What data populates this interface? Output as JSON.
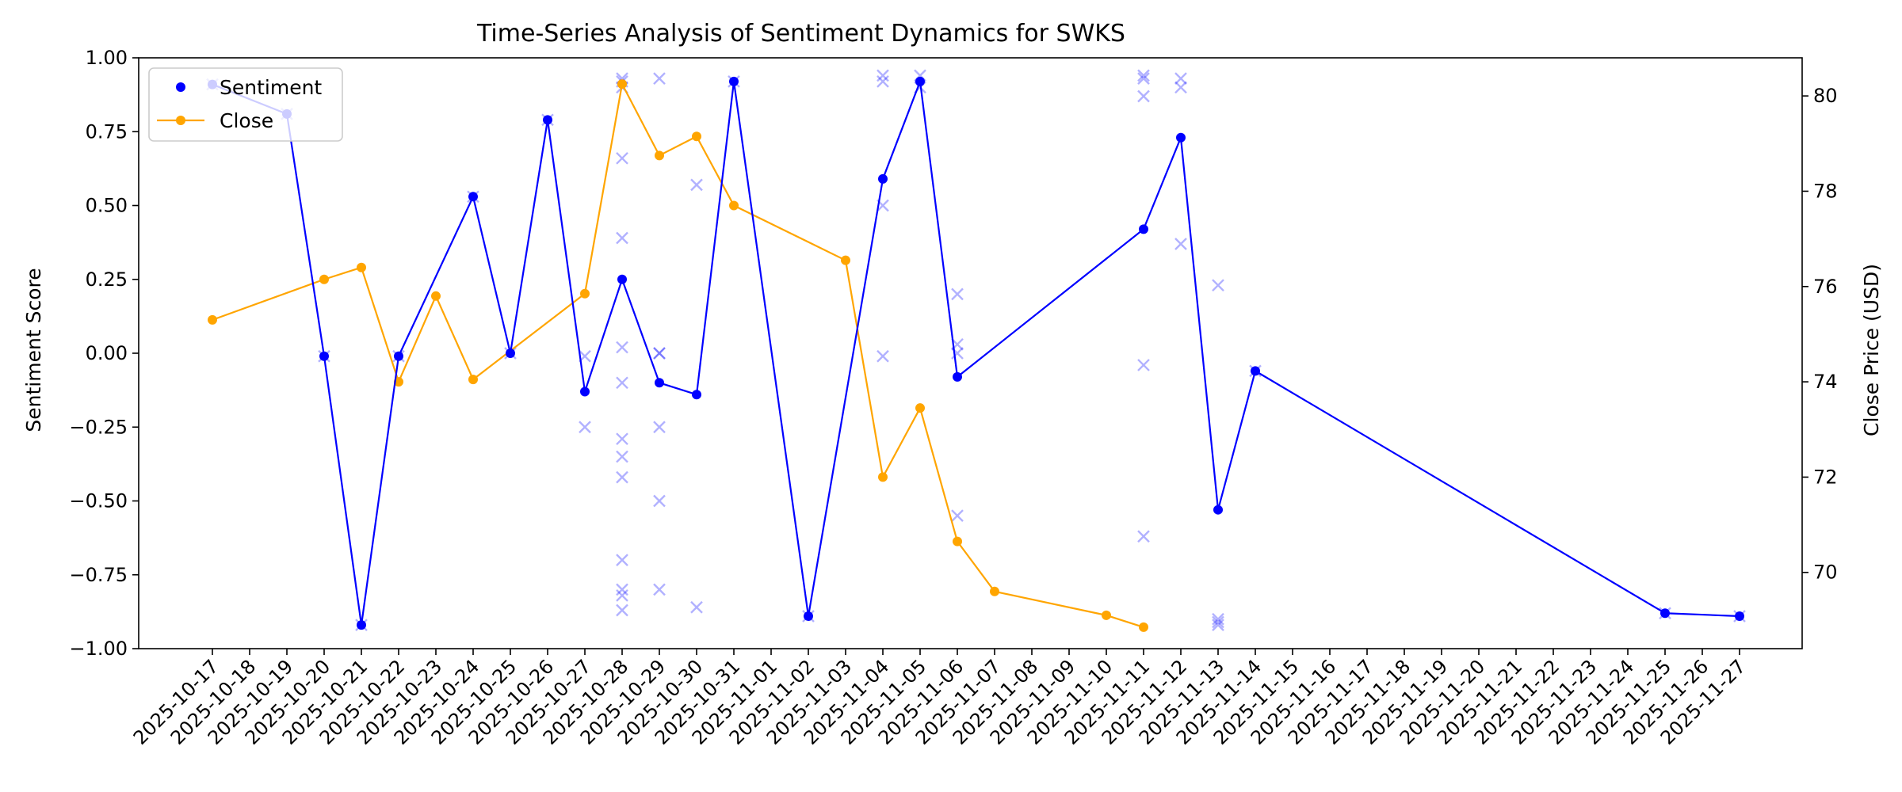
{
  "chart_data": {
    "type": "line",
    "title": "Time-Series Analysis of Sentiment Dynamics for SWKS",
    "xlabel": "",
    "ylabel": "Sentiment Score",
    "y2label": "Close Price (USD)",
    "ylim": [
      -1.0,
      1.0
    ],
    "y2lim": [
      68.4,
      80.8
    ],
    "yticks": [
      "1.00",
      "0.75",
      "0.50",
      "0.25",
      "0.00",
      "−0.25",
      "−0.50",
      "−0.75",
      "−1.00"
    ],
    "yticks_values": [
      1.0,
      0.75,
      0.5,
      0.25,
      0.0,
      -0.25,
      -0.5,
      -0.75,
      -1.0
    ],
    "y2ticks": [
      "80",
      "78",
      "76",
      "74",
      "72",
      "70"
    ],
    "y2ticks_values": [
      80,
      78,
      76,
      74,
      72,
      70
    ],
    "x_dates": [
      "2025-10-17",
      "2025-10-18",
      "2025-10-19",
      "2025-10-20",
      "2025-10-21",
      "2025-10-22",
      "2025-10-23",
      "2025-10-24",
      "2025-10-25",
      "2025-10-26",
      "2025-10-27",
      "2025-10-28",
      "2025-10-29",
      "2025-10-30",
      "2025-10-31",
      "2025-11-01",
      "2025-11-02",
      "2025-11-03",
      "2025-11-04",
      "2025-11-05",
      "2025-11-06",
      "2025-11-07",
      "2025-11-08",
      "2025-11-09",
      "2025-11-10",
      "2025-11-11",
      "2025-11-12",
      "2025-11-13",
      "2025-11-14",
      "2025-11-15",
      "2025-11-16",
      "2025-11-17",
      "2025-11-18",
      "2025-11-19",
      "2025-11-20",
      "2025-11-21",
      "2025-11-22",
      "2025-11-23",
      "2025-11-24",
      "2025-11-25",
      "2025-11-26",
      "2025-11-27"
    ],
    "grid": false,
    "legend_position": "top-left",
    "series": [
      {
        "name": "Sentiment",
        "axis": "left",
        "color": "#0000ff",
        "style": "line-with-dots",
        "points": [
          {
            "x": "2025-10-17",
            "y": 0.91
          },
          {
            "x": "2025-10-19",
            "y": 0.81
          },
          {
            "x": "2025-10-20",
            "y": -0.01
          },
          {
            "x": "2025-10-21",
            "y": -0.92
          },
          {
            "x": "2025-10-22",
            "y": -0.01
          },
          {
            "x": "2025-10-24",
            "y": 0.53
          },
          {
            "x": "2025-10-25",
            "y": 0.0
          },
          {
            "x": "2025-10-26",
            "y": 0.79
          },
          {
            "x": "2025-10-27",
            "y": -0.13
          },
          {
            "x": "2025-10-28",
            "y": 0.25
          },
          {
            "x": "2025-10-29",
            "y": -0.1
          },
          {
            "x": "2025-10-30",
            "y": -0.14
          },
          {
            "x": "2025-10-31",
            "y": 0.92
          },
          {
            "x": "2025-11-02",
            "y": -0.89
          },
          {
            "x": "2025-11-04",
            "y": 0.59
          },
          {
            "x": "2025-11-05",
            "y": 0.92
          },
          {
            "x": "2025-11-06",
            "y": -0.08
          },
          {
            "x": "2025-11-11",
            "y": 0.42
          },
          {
            "x": "2025-11-12",
            "y": 0.73
          },
          {
            "x": "2025-11-13",
            "y": -0.53
          },
          {
            "x": "2025-11-14",
            "y": -0.06
          },
          {
            "x": "2025-11-25",
            "y": -0.88
          },
          {
            "x": "2025-11-27",
            "y": -0.89
          }
        ]
      },
      {
        "name": "Close",
        "axis": "right",
        "color": "#ffa500",
        "style": "line-with-dots",
        "points": [
          {
            "x": "2025-10-17",
            "y": 75.3
          },
          {
            "x": "2025-10-20",
            "y": 76.15
          },
          {
            "x": "2025-10-21",
            "y": 76.4
          },
          {
            "x": "2025-10-22",
            "y": 74.0
          },
          {
            "x": "2025-10-23",
            "y": 75.8
          },
          {
            "x": "2025-10-24",
            "y": 74.05
          },
          {
            "x": "2025-10-27",
            "y": 75.85
          },
          {
            "x": "2025-10-28",
            "y": 80.25
          },
          {
            "x": "2025-10-29",
            "y": 78.75
          },
          {
            "x": "2025-10-30",
            "y": 79.15
          },
          {
            "x": "2025-10-31",
            "y": 77.7
          },
          {
            "x": "2025-11-03",
            "y": 76.55
          },
          {
            "x": "2025-11-04",
            "y": 72.0
          },
          {
            "x": "2025-11-05",
            "y": 73.45
          },
          {
            "x": "2025-11-06",
            "y": 70.65
          },
          {
            "x": "2025-11-07",
            "y": 69.6
          },
          {
            "x": "2025-11-10",
            "y": 69.1
          },
          {
            "x": "2025-11-11",
            "y": 68.85
          }
        ]
      },
      {
        "axis": "left",
        "color": "#0000ff",
        "style": "x-markers",
        "opacity": 0.3,
        "points": [
          {
            "x": "2025-10-17",
            "y": 0.91
          },
          {
            "x": "2025-10-19",
            "y": 0.81
          },
          {
            "x": "2025-10-20",
            "y": -0.01
          },
          {
            "x": "2025-10-21",
            "y": -0.92
          },
          {
            "x": "2025-10-22",
            "y": -0.01
          },
          {
            "x": "2025-10-24",
            "y": 0.53
          },
          {
            "x": "2025-10-25",
            "y": 0.0
          },
          {
            "x": "2025-10-26",
            "y": 0.79
          },
          {
            "x": "2025-10-27",
            "y": -0.01
          },
          {
            "x": "2025-10-27",
            "y": -0.25
          },
          {
            "x": "2025-10-28",
            "y": 0.93
          },
          {
            "x": "2025-10-28",
            "y": 0.92
          },
          {
            "x": "2025-10-28",
            "y": 0.9
          },
          {
            "x": "2025-10-28",
            "y": 0.66
          },
          {
            "x": "2025-10-28",
            "y": 0.39
          },
          {
            "x": "2025-10-28",
            "y": 0.02
          },
          {
            "x": "2025-10-28",
            "y": -0.1
          },
          {
            "x": "2025-10-28",
            "y": -0.29
          },
          {
            "x": "2025-10-28",
            "y": -0.35
          },
          {
            "x": "2025-10-28",
            "y": -0.42
          },
          {
            "x": "2025-10-28",
            "y": -0.7
          },
          {
            "x": "2025-10-28",
            "y": -0.8
          },
          {
            "x": "2025-10-28",
            "y": -0.82
          },
          {
            "x": "2025-10-28",
            "y": -0.87
          },
          {
            "x": "2025-10-29",
            "y": 0.93
          },
          {
            "x": "2025-10-29",
            "y": 0.0
          },
          {
            "x": "2025-10-29",
            "y": 0.0
          },
          {
            "x": "2025-10-29",
            "y": -0.25
          },
          {
            "x": "2025-10-29",
            "y": -0.5
          },
          {
            "x": "2025-10-29",
            "y": -0.8
          },
          {
            "x": "2025-10-30",
            "y": 0.57
          },
          {
            "x": "2025-10-30",
            "y": -0.86
          },
          {
            "x": "2025-10-31",
            "y": 0.92
          },
          {
            "x": "2025-11-02",
            "y": -0.89
          },
          {
            "x": "2025-11-04",
            "y": 0.94
          },
          {
            "x": "2025-11-04",
            "y": 0.92
          },
          {
            "x": "2025-11-04",
            "y": 0.5
          },
          {
            "x": "2025-11-04",
            "y": -0.01
          },
          {
            "x": "2025-11-05",
            "y": 0.94
          },
          {
            "x": "2025-11-05",
            "y": 0.9
          },
          {
            "x": "2025-11-06",
            "y": 0.2
          },
          {
            "x": "2025-11-06",
            "y": 0.03
          },
          {
            "x": "2025-11-06",
            "y": 0.0
          },
          {
            "x": "2025-11-06",
            "y": -0.55
          },
          {
            "x": "2025-11-11",
            "y": 0.94
          },
          {
            "x": "2025-11-11",
            "y": 0.93
          },
          {
            "x": "2025-11-11",
            "y": 0.87
          },
          {
            "x": "2025-11-11",
            "y": -0.04
          },
          {
            "x": "2025-11-11",
            "y": -0.62
          },
          {
            "x": "2025-11-12",
            "y": 0.93
          },
          {
            "x": "2025-11-12",
            "y": 0.9
          },
          {
            "x": "2025-11-12",
            "y": 0.37
          },
          {
            "x": "2025-11-13",
            "y": 0.23
          },
          {
            "x": "2025-11-13",
            "y": -0.9
          },
          {
            "x": "2025-11-13",
            "y": -0.91
          },
          {
            "x": "2025-11-13",
            "y": -0.92
          },
          {
            "x": "2025-11-14",
            "y": -0.06
          },
          {
            "x": "2025-11-25",
            "y": -0.88
          },
          {
            "x": "2025-11-27",
            "y": -0.89
          }
        ]
      }
    ]
  }
}
